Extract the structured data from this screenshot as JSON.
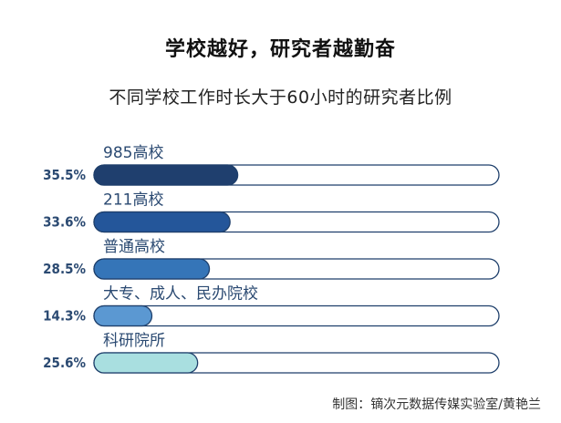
{
  "chart_data": {
    "type": "bar",
    "orientation": "horizontal",
    "title": "学校越好，研究者越勤奋",
    "subtitle": "不同学校工作时长大于60小时的研究者比例",
    "categories": [
      "985高校",
      "211高校",
      "普通高校",
      "大专、成人、民办院校",
      "科研院所"
    ],
    "values": [
      35.5,
      33.6,
      28.5,
      14.3,
      25.6
    ],
    "value_labels": [
      "35.5%",
      "33.6%",
      "28.5%",
      "14.3%",
      "25.6%"
    ],
    "xlim": [
      0,
      100
    ],
    "unit": "%",
    "grid": false,
    "legend": "none",
    "colors": [
      "#1f3f6e",
      "#24569a",
      "#3575b8",
      "#5b98d2",
      "#a9dfe0"
    ],
    "outline_color": "#1e3f6b",
    "label_color": "#2b4a72"
  },
  "credit": "制图：镝次元数据传媒实验室/黄艳兰"
}
